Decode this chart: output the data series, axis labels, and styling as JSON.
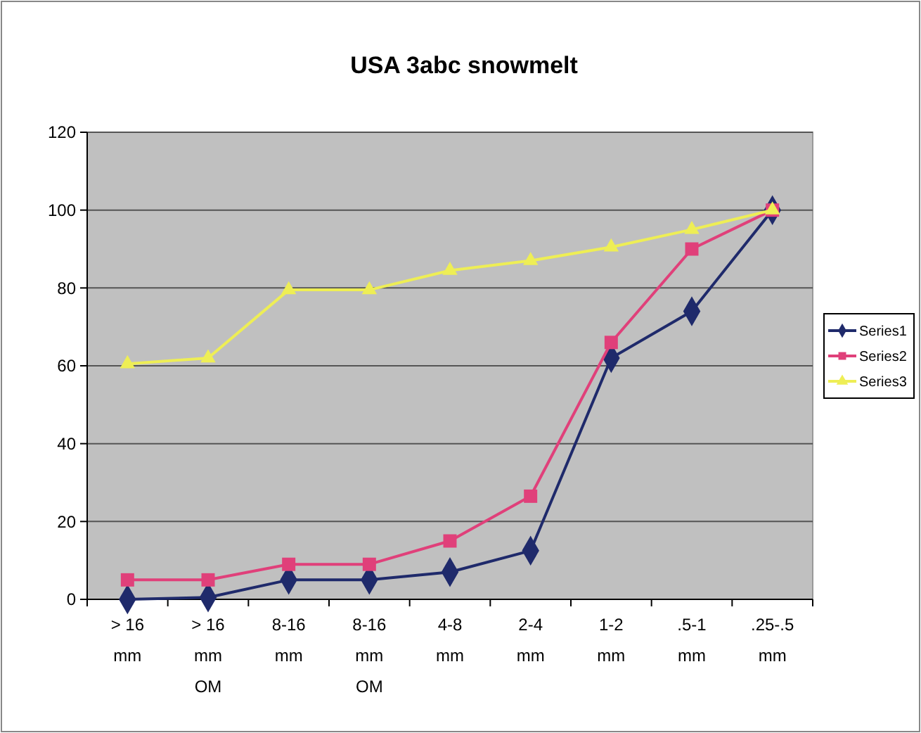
{
  "chart_data": {
    "type": "line",
    "title": "USA 3abc snowmelt",
    "categories": [
      "> 16 mm",
      "> 16 mm OM",
      "8-16 mm",
      "8-16 mm OM",
      "4-8 mm",
      "2-4 mm",
      "1-2 mm",
      ".5-1 mm",
      ".25-.5 mm"
    ],
    "ylim": [
      0,
      120
    ],
    "yticks": [
      0,
      20,
      40,
      60,
      80,
      100,
      120
    ],
    "grid": "y",
    "legend": "right",
    "series": [
      {
        "name": "Series1",
        "color": "#1f2a6b",
        "marker": "diamond",
        "values": [
          0,
          0.5,
          5,
          5,
          7,
          12.5,
          62,
          74,
          100
        ]
      },
      {
        "name": "Series2",
        "color": "#e0407a",
        "marker": "square",
        "values": [
          5,
          5,
          9,
          9,
          15,
          26.5,
          66,
          90,
          100
        ]
      },
      {
        "name": "Series3",
        "color": "#eeee55",
        "marker": "triangle",
        "values": [
          60.5,
          62,
          79.5,
          79.5,
          84.5,
          87,
          90.5,
          95,
          100
        ]
      }
    ]
  }
}
